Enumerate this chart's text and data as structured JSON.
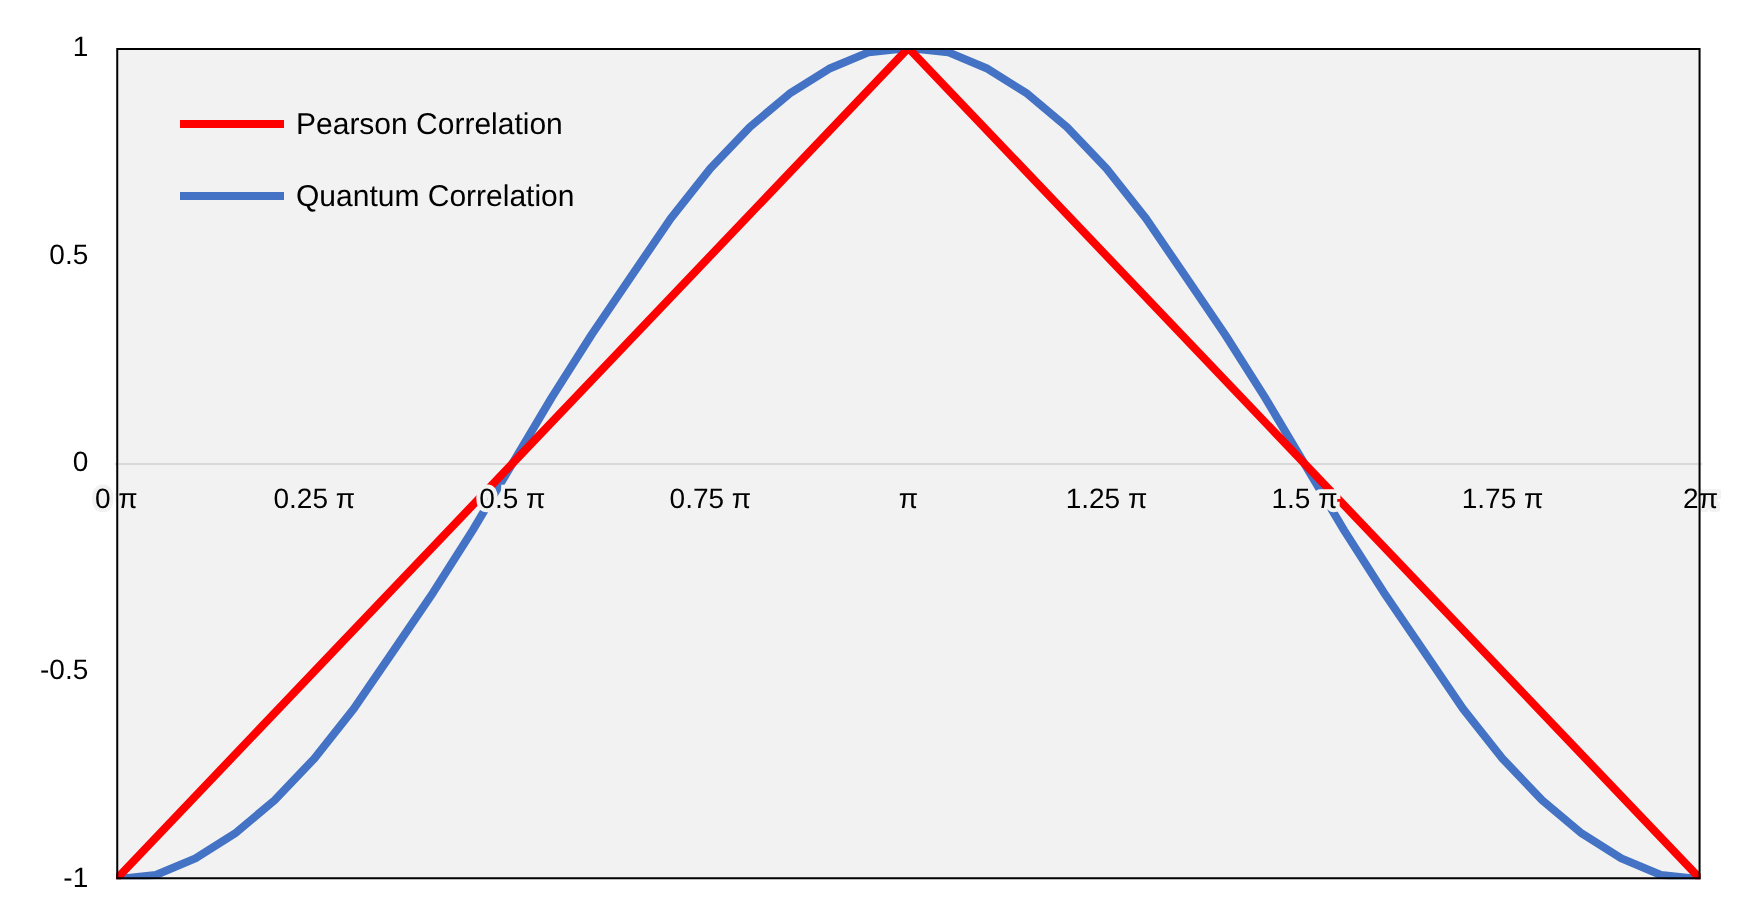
{
  "chart_data": {
    "type": "line",
    "xlim": [
      0,
      6.2832
    ],
    "ylim": [
      -1,
      1
    ],
    "xticks": [
      {
        "value": 0,
        "label": "0 π"
      },
      {
        "value": 0.7854,
        "label": "0.25 π"
      },
      {
        "value": 1.5708,
        "label": "0.5 π"
      },
      {
        "value": 2.3562,
        "label": "0.75 π"
      },
      {
        "value": 3.1416,
        "label": "π"
      },
      {
        "value": 3.927,
        "label": "1.25 π"
      },
      {
        "value": 4.7124,
        "label": "1.5 π"
      },
      {
        "value": 5.4978,
        "label": "1.75 π"
      },
      {
        "value": 6.2832,
        "label": "2π"
      }
    ],
    "yticks": [
      -1,
      -0.5,
      0,
      0.5,
      1
    ],
    "grid": false,
    "legend": "top left",
    "marker": "none",
    "line_style": "solid",
    "series": [
      {
        "name": "Pearson Correlation",
        "color": "#ff0000",
        "x": [
          0,
          3.1416,
          6.2832
        ],
        "values": [
          -1,
          1,
          -1
        ]
      },
      {
        "name": "Quantum Correlation",
        "color": "#4472c4",
        "x": [
          0,
          0.157,
          0.314,
          0.471,
          0.628,
          0.785,
          0.942,
          1.1,
          1.257,
          1.414,
          1.571,
          1.728,
          1.885,
          2.042,
          2.199,
          2.356,
          2.513,
          2.67,
          2.827,
          2.985,
          3.142,
          3.299,
          3.456,
          3.613,
          3.77,
          3.927,
          4.084,
          4.241,
          4.398,
          4.555,
          4.712,
          4.869,
          5.027,
          5.184,
          5.341,
          5.498,
          5.655,
          5.812,
          5.969,
          6.126,
          6.283
        ],
        "values": [
          -1,
          -0.99,
          -0.95,
          -0.89,
          -0.81,
          -0.71,
          -0.59,
          -0.45,
          -0.31,
          -0.16,
          0,
          0.16,
          0.31,
          0.45,
          0.59,
          0.71,
          0.81,
          0.89,
          0.95,
          0.99,
          1,
          0.99,
          0.95,
          0.89,
          0.81,
          0.71,
          0.59,
          0.45,
          0.31,
          0.16,
          0,
          -0.16,
          -0.31,
          -0.45,
          -0.59,
          -0.71,
          -0.81,
          -0.89,
          -0.95,
          -0.99,
          -1
        ]
      }
    ]
  }
}
